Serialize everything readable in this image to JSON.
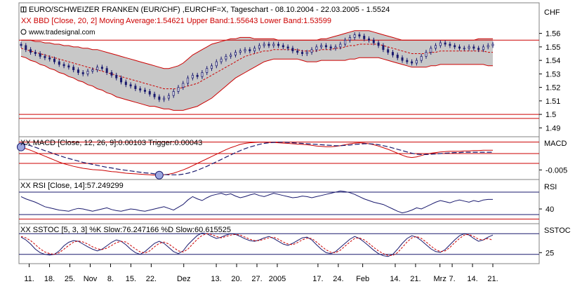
{
  "header": {
    "title": "EURO/SCHWEIZER FRANKEN (EUR/CHF) ,EURCHF=X, Tageschart - 08.10.2004 - 22.03.2005 - 1.5524",
    "bbd_line": "XX BBD [Close, 20, 2] Moving Average:1.54621 Upper Band:1.55643 Lower Band:1.53599",
    "website": "www.tradesignal.com"
  },
  "colors": {
    "band_fill": "#c8c8c8",
    "band_line": "#cc0000",
    "price": "#1a1a6e",
    "macd_line": "#cc0000",
    "trigger_line": "#1a1a6e",
    "rsi_line": "#1a1a6e",
    "k_line": "#1a1a6e",
    "d_line": "#cc0000",
    "ref_line_red": "#cc0000",
    "ref_line_blue": "#1a1a6e"
  },
  "chart_data": [
    {
      "type": "candlestick",
      "panel": "price",
      "axis_title": "CHF",
      "yticks": [
        "1.56",
        "1.55",
        "1.54",
        "1.53",
        "1.52",
        "1.51",
        "1.5",
        "1.49"
      ],
      "ylim": [
        1.485,
        1.565
      ],
      "ref_lines": [
        1.555,
        1.5,
        1.497
      ],
      "close": [
        1.551,
        1.548,
        1.546,
        1.545,
        1.543,
        1.542,
        1.541,
        1.539,
        1.537,
        1.536,
        1.535,
        1.533,
        1.531,
        1.53,
        1.532,
        1.533,
        1.535,
        1.534,
        1.531,
        1.529,
        1.527,
        1.524,
        1.522,
        1.521,
        1.519,
        1.518,
        1.517,
        1.515,
        1.513,
        1.511,
        1.512,
        1.514,
        1.517,
        1.52,
        1.523,
        1.527,
        1.529,
        1.528,
        1.531,
        1.534,
        1.536,
        1.539,
        1.541,
        1.543,
        1.544,
        1.546,
        1.547,
        1.548,
        1.547,
        1.549,
        1.551,
        1.552,
        1.551,
        1.552,
        1.551,
        1.55,
        1.549,
        1.547,
        1.546,
        1.545,
        1.546,
        1.548,
        1.55,
        1.551,
        1.55,
        1.549,
        1.55,
        1.552,
        1.555,
        1.557,
        1.559,
        1.558,
        1.556,
        1.555,
        1.553,
        1.551,
        1.548,
        1.546,
        1.544,
        1.542,
        1.54,
        1.539,
        1.538,
        1.54,
        1.543,
        1.546,
        1.549,
        1.551,
        1.553,
        1.552,
        1.551,
        1.55,
        1.549,
        1.549,
        1.55,
        1.549,
        1.548,
        1.55,
        1.551,
        1.552
      ],
      "bb_mid": [
        1.549,
        1.548,
        1.547,
        1.546,
        1.545,
        1.544,
        1.543,
        1.542,
        1.541,
        1.54,
        1.539,
        1.538,
        1.537,
        1.536,
        1.535,
        1.534,
        1.533,
        1.532,
        1.531,
        1.53,
        1.529,
        1.528,
        1.527,
        1.526,
        1.525,
        1.524,
        1.523,
        1.522,
        1.521,
        1.52,
        1.519,
        1.519,
        1.519,
        1.519,
        1.52,
        1.521,
        1.522,
        1.523,
        1.525,
        1.527,
        1.529,
        1.531,
        1.533,
        1.535,
        1.537,
        1.539,
        1.541,
        1.543,
        1.544,
        1.545,
        1.546,
        1.547,
        1.547,
        1.548,
        1.548,
        1.548,
        1.548,
        1.548,
        1.548,
        1.547,
        1.547,
        1.547,
        1.547,
        1.548,
        1.548,
        1.548,
        1.549,
        1.549,
        1.55,
        1.551,
        1.551,
        1.552,
        1.552,
        1.552,
        1.552,
        1.552,
        1.551,
        1.55,
        1.549,
        1.548,
        1.547,
        1.546,
        1.545,
        1.545,
        1.545,
        1.545,
        1.546,
        1.546,
        1.547,
        1.547,
        1.547,
        1.547,
        1.547,
        1.547,
        1.547,
        1.547,
        1.547,
        1.547,
        1.546,
        1.546
      ],
      "bb_upper": [
        1.555,
        1.555,
        1.555,
        1.554,
        1.554,
        1.553,
        1.553,
        1.552,
        1.552,
        1.551,
        1.551,
        1.55,
        1.55,
        1.549,
        1.549,
        1.548,
        1.548,
        1.547,
        1.546,
        1.545,
        1.544,
        1.543,
        1.542,
        1.541,
        1.54,
        1.539,
        1.538,
        1.537,
        1.536,
        1.535,
        1.534,
        1.534,
        1.535,
        1.536,
        1.538,
        1.541,
        1.544,
        1.546,
        1.548,
        1.55,
        1.552,
        1.553,
        1.554,
        1.555,
        1.556,
        1.556,
        1.557,
        1.557,
        1.557,
        1.556,
        1.556,
        1.556,
        1.556,
        1.556,
        1.555,
        1.555,
        1.555,
        1.555,
        1.555,
        1.555,
        1.555,
        1.555,
        1.555,
        1.556,
        1.556,
        1.557,
        1.558,
        1.559,
        1.56,
        1.561,
        1.562,
        1.562,
        1.562,
        1.562,
        1.561,
        1.56,
        1.559,
        1.558,
        1.557,
        1.556,
        1.555,
        1.555,
        1.555,
        1.555,
        1.555,
        1.555,
        1.555,
        1.555,
        1.555,
        1.555,
        1.555,
        1.555,
        1.555,
        1.555,
        1.555,
        1.555,
        1.556,
        1.556,
        1.556,
        1.556
      ],
      "bb_lower": [
        1.543,
        1.542,
        1.54,
        1.539,
        1.537,
        1.536,
        1.534,
        1.533,
        1.531,
        1.53,
        1.528,
        1.527,
        1.525,
        1.524,
        1.522,
        1.521,
        1.519,
        1.518,
        1.516,
        1.515,
        1.513,
        1.512,
        1.511,
        1.51,
        1.509,
        1.508,
        1.507,
        1.506,
        1.506,
        1.505,
        1.504,
        1.504,
        1.503,
        1.503,
        1.503,
        1.504,
        1.505,
        1.506,
        1.508,
        1.51,
        1.512,
        1.515,
        1.518,
        1.521,
        1.524,
        1.527,
        1.529,
        1.531,
        1.533,
        1.535,
        1.537,
        1.539,
        1.54,
        1.541,
        1.541,
        1.541,
        1.541,
        1.541,
        1.541,
        1.54,
        1.539,
        1.539,
        1.539,
        1.54,
        1.54,
        1.54,
        1.54,
        1.54,
        1.54,
        1.541,
        1.541,
        1.542,
        1.542,
        1.542,
        1.542,
        1.542,
        1.541,
        1.54,
        1.539,
        1.538,
        1.537,
        1.536,
        1.535,
        1.535,
        1.535,
        1.535,
        1.536,
        1.536,
        1.537,
        1.537,
        1.537,
        1.537,
        1.537,
        1.537,
        1.537,
        1.537,
        1.537,
        1.537,
        1.536,
        1.536
      ]
    },
    {
      "type": "line",
      "panel": "macd",
      "label": "XX MACD [Close, 12, 26, 9]:0.00103 Trigger:0.00043",
      "axis_title": "MACD",
      "yticks": [
        "-0.005"
      ],
      "ylim": [
        -0.0075,
        0.0045
      ],
      "ref_lines": [
        0.0035,
        0.0,
        -0.003
      ],
      "series": [
        {
          "values": [
            0.002,
            0.0015,
            0.001,
            0.0004,
            -0.0002,
            -0.0008,
            -0.0014,
            -0.002,
            -0.0026,
            -0.0031,
            -0.0035,
            -0.0039,
            -0.0042,
            -0.0045,
            -0.0047,
            -0.0049,
            -0.005,
            -0.0051,
            -0.0053,
            -0.0055,
            -0.0056,
            -0.0058,
            -0.006,
            -0.0061,
            -0.0062,
            -0.0063,
            -0.0064,
            -0.0065,
            -0.0066,
            -0.0066,
            -0.0065,
            -0.0063,
            -0.006,
            -0.0055,
            -0.005,
            -0.0044,
            -0.0037,
            -0.003,
            -0.0023,
            -0.0016,
            -0.0009,
            -0.0002,
            0.0005,
            0.0012,
            0.0018,
            0.0023,
            0.0028,
            0.0031,
            0.0033,
            0.0034,
            0.0035,
            0.0035,
            0.0034,
            0.0034,
            0.0033,
            0.0032,
            0.0031,
            0.003,
            0.0029,
            0.0028,
            0.0027,
            0.0025,
            0.0023,
            0.0022,
            0.0021,
            0.0021,
            0.0022,
            0.0024,
            0.0027,
            0.003,
            0.0032,
            0.0033,
            0.0032,
            0.003,
            0.0027,
            0.0023,
            0.0018,
            0.0013,
            0.0007,
            0.0001,
            -0.0005,
            -0.001,
            -0.0012,
            -0.001,
            -0.0006,
            -0.0002,
            0.0001,
            0.0003,
            0.0005,
            0.0006,
            0.0007,
            0.0007,
            0.0007,
            0.0008,
            0.0008,
            0.0009,
            0.0009,
            0.001,
            0.001,
            0.001
          ]
        },
        {
          "values": [
            0.0032,
            0.0028,
            0.0024,
            0.0019,
            0.0014,
            0.0009,
            0.0004,
            -0.0001,
            -0.0006,
            -0.0011,
            -0.0015,
            -0.0019,
            -0.0023,
            -0.0027,
            -0.003,
            -0.0033,
            -0.0036,
            -0.0039,
            -0.0042,
            -0.0044,
            -0.0047,
            -0.0049,
            -0.0051,
            -0.0053,
            -0.0055,
            -0.0057,
            -0.0059,
            -0.006,
            -0.0062,
            -0.0063,
            -0.0064,
            -0.0065,
            -0.0065,
            -0.0065,
            -0.0063,
            -0.006,
            -0.0056,
            -0.0051,
            -0.0045,
            -0.0039,
            -0.0032,
            -0.0025,
            -0.0018,
            -0.0011,
            -0.0004,
            0.0003,
            0.0009,
            0.0015,
            0.002,
            0.0024,
            0.0028,
            0.0031,
            0.0033,
            0.0034,
            0.0035,
            0.0035,
            0.0034,
            0.0033,
            0.0032,
            0.0031,
            0.003,
            0.0029,
            0.0028,
            0.0027,
            0.0026,
            0.0025,
            0.0024,
            0.0024,
            0.0025,
            0.0026,
            0.0028,
            0.0029,
            0.003,
            0.003,
            0.0029,
            0.0027,
            0.0024,
            0.0021,
            0.0017,
            0.0013,
            0.0009,
            0.0005,
            0.0001,
            -0.0002,
            -0.0003,
            -0.0003,
            -0.0002,
            -0.0001,
            0.0,
            0.0001,
            0.0002,
            0.0003,
            0.0003,
            0.0004,
            0.0004,
            0.0004,
            0.0004,
            0.0004,
            0.0004,
            0.0004
          ]
        }
      ]
    },
    {
      "type": "line",
      "panel": "rsi",
      "label": "XX RSI [Close, 14]:57.249299",
      "axis_title": "RSI",
      "yticks": [
        "40"
      ],
      "ylim": [
        15,
        90
      ],
      "ref_lines": [
        70,
        30,
        22
      ],
      "series": [
        {
          "values": [
            62,
            58,
            55,
            52,
            48,
            44,
            42,
            40,
            38,
            37,
            36,
            39,
            41,
            40,
            38,
            36,
            38,
            40,
            42,
            39,
            37,
            36,
            38,
            40,
            39,
            37,
            36,
            38,
            40,
            42,
            44,
            41,
            38,
            43,
            48,
            56,
            62,
            58,
            55,
            60,
            64,
            66,
            68,
            65,
            67,
            63,
            60,
            62,
            65,
            67,
            64,
            62,
            65,
            68,
            66,
            64,
            62,
            60,
            61,
            63,
            62,
            60,
            62,
            64,
            66,
            68,
            70,
            72,
            71,
            69,
            66,
            62,
            58,
            55,
            52,
            50,
            48,
            44,
            40,
            36,
            33,
            35,
            38,
            42,
            40,
            44,
            48,
            52,
            55,
            53,
            51,
            54,
            56,
            54,
            52,
            55,
            53,
            56,
            57,
            57
          ]
        }
      ]
    },
    {
      "type": "line",
      "panel": "sstoc",
      "label": "XX SSTOC [5, 3, 3] %K Slow:76.247166 %D Slow:60.615525",
      "axis_title": "SSTOC",
      "yticks": [
        "25"
      ],
      "ylim": [
        -5,
        105
      ],
      "ref_lines": [
        80,
        20
      ],
      "series": [
        {
          "values": [
            70,
            62,
            50,
            35,
            25,
            20,
            18,
            20,
            30,
            45,
            55,
            60,
            58,
            50,
            42,
            35,
            30,
            35,
            45,
            55,
            62,
            58,
            48,
            35,
            25,
            20,
            28,
            40,
            52,
            58,
            52,
            40,
            28,
            22,
            30,
            48,
            62,
            75,
            82,
            80,
            72,
            66,
            70,
            76,
            80,
            78,
            72,
            65,
            60,
            58,
            62,
            68,
            72,
            66,
            58,
            50,
            46,
            52,
            60,
            68,
            70,
            62,
            48,
            35,
            25,
            22,
            28,
            40,
            52,
            64,
            72,
            66,
            56,
            44,
            32,
            22,
            16,
            14,
            20,
            35,
            52,
            66,
            74,
            70,
            60,
            48,
            36,
            28,
            26,
            34,
            48,
            62,
            74,
            80,
            76,
            66,
            58,
            62,
            70,
            76
          ]
        },
        {
          "values": [
            72,
            68,
            60,
            48,
            36,
            27,
            22,
            20,
            25,
            35,
            46,
            55,
            59,
            56,
            50,
            42,
            36,
            34,
            38,
            46,
            54,
            58,
            56,
            46,
            36,
            27,
            24,
            30,
            42,
            52,
            56,
            50,
            40,
            30,
            27,
            35,
            50,
            64,
            75,
            80,
            78,
            72,
            68,
            72,
            76,
            78,
            76,
            70,
            64,
            60,
            60,
            64,
            68,
            70,
            64,
            56,
            50,
            48,
            54,
            62,
            67,
            66,
            56,
            44,
            33,
            26,
            25,
            32,
            44,
            56,
            66,
            68,
            62,
            52,
            40,
            30,
            22,
            17,
            17,
            25,
            40,
            56,
            68,
            72,
            66,
            56,
            44,
            34,
            28,
            30,
            40,
            54,
            66,
            76,
            78,
            72,
            64,
            62,
            66,
            61
          ]
        }
      ]
    }
  ],
  "xaxis": {
    "ticks": [
      {
        "label": "11.",
        "index": 2
      },
      {
        "label": "18.",
        "index": 7
      },
      {
        "label": "25.",
        "index": 12
      },
      {
        "label": "Nov",
        "index": 17
      },
      {
        "label": "8.",
        "index": 22
      },
      {
        "label": "15.",
        "index": 27
      },
      {
        "label": "22.",
        "index": 32
      },
      {
        "label": "Dez",
        "index": 40
      },
      {
        "label": "13.",
        "index": 48
      },
      {
        "label": "20.",
        "index": 53
      },
      {
        "label": "27.",
        "index": 58
      },
      {
        "label": "2005",
        "index": 63
      },
      {
        "label": "17.",
        "index": 73
      },
      {
        "label": "24.",
        "index": 78
      },
      {
        "label": "Feb",
        "index": 84
      },
      {
        "label": "14.",
        "index": 92
      },
      {
        "label": "21.",
        "index": 97
      },
      {
        "label": "Mrz",
        "index": 103
      },
      {
        "label": "7.",
        "index": 106
      },
      {
        "label": "14.",
        "index": 111
      },
      {
        "label": "21.",
        "index": 116
      }
    ]
  }
}
